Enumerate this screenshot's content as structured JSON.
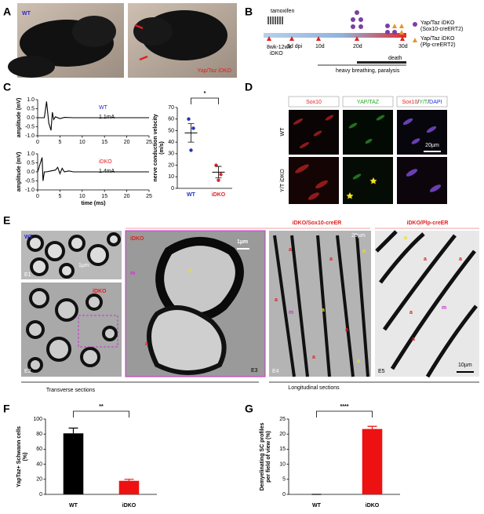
{
  "panel_labels": [
    "A",
    "B",
    "C",
    "D",
    "E",
    "F",
    "G"
  ],
  "panel_a": {
    "wt": "WT",
    "idko": "Yap/Taz iDKO"
  },
  "panel_b": {
    "tamoxifen": "tamoxifen",
    "start": "8wk-12wk",
    "start_sub": "iDKO",
    "days": [
      "5d dpi",
      "10d",
      "20d",
      "30d"
    ],
    "legend": [
      {
        "name": "Yap/Taz iDKO",
        "sub": "(Sox10-creERT2)"
      },
      {
        "name": "Yap/Taz iDKO",
        "sub": "(Plp-creERT2)"
      }
    ],
    "death": "death",
    "symptoms": "heavy breathing, paralysis"
  },
  "panel_d": {
    "columns": [
      [
        "Sox10"
      ],
      [
        "YAP/TAZ"
      ],
      [
        "Sox10",
        "/",
        "Y/T",
        "/",
        "DAPI"
      ]
    ],
    "rows": [
      "WT",
      "Y/T iDKO"
    ],
    "scale": "20µm"
  },
  "panel_e": {
    "header_sox": "iDKO/Sox10-creER",
    "header_plp": "iDKO/Plp-creER",
    "e1": {
      "tag": "E1",
      "label": "WT",
      "scale": "1µm"
    },
    "e2": {
      "tag": "E2",
      "label": "iDKO"
    },
    "e3": {
      "tag": "E3",
      "label": "iDKO",
      "scale": "1µm",
      "marks": [
        "m",
        "a",
        "a"
      ]
    },
    "e4": {
      "tag": "E4",
      "scale": "20µm",
      "marks": [
        "a",
        "a",
        "a",
        "a",
        "m",
        "a",
        "a",
        "a",
        "a"
      ]
    },
    "e5": {
      "tag": "E5",
      "scale": "10µm",
      "marks": [
        "a",
        "a",
        "a",
        "m",
        "a",
        "a"
      ]
    },
    "transverse": "Transverse sections",
    "longitudinal": "Longitudinal sections"
  },
  "chart_data": [
    {
      "type": "line",
      "label": "WT",
      "current": "1.1mA",
      "color": "#000000",
      "x": [
        0,
        1.5,
        2,
        2.5,
        3,
        3.3,
        3.6,
        4,
        5,
        6,
        8,
        12,
        25
      ],
      "values": [
        0,
        0,
        0.9,
        -0.3,
        -0.7,
        0.3,
        -0.1,
        0.05,
        -0.05,
        0.02,
        0,
        0,
        0
      ],
      "xlim": [
        0,
        25
      ],
      "xticks": [
        0,
        5,
        10,
        15,
        20,
        25
      ],
      "ylim": [
        -1,
        1
      ],
      "yticks": [
        {
          "value": -1,
          "label": "-1.0"
        },
        -0.5,
        {
          "value": 0,
          "label": "0.0"
        },
        0.5,
        {
          "value": 1,
          "label": "1.0"
        }
      ],
      "ylabel": [
        "amplitude (mV)"
      ]
    },
    {
      "type": "line",
      "label": "iDKO",
      "current": "1.4mA",
      "color": "#000000",
      "x": [
        0,
        1,
        1.2,
        1.5,
        2,
        3,
        4,
        4.5,
        5,
        5.5,
        6,
        7,
        8,
        25
      ],
      "values": [
        0,
        0.8,
        -0.5,
        0,
        0,
        0.05,
        0.1,
        0.25,
        -0.1,
        0.2,
        0,
        0.05,
        0,
        0
      ],
      "xlim": [
        0,
        25
      ],
      "xticks": [
        0,
        5,
        10,
        15,
        20,
        25
      ],
      "ylim": [
        -1,
        1
      ],
      "yticks": [
        {
          "value": -1,
          "label": "-1.0"
        },
        -0.5,
        {
          "value": 0,
          "label": "0.0"
        },
        0.5,
        {
          "value": 1,
          "label": "1.0"
        }
      ],
      "ylabel": [
        "amplitude (mV)"
      ],
      "xlabel": "time (ms)"
    },
    {
      "type": "dot",
      "categories": [
        "WT",
        "iDKO"
      ],
      "colors": [
        "#2233bb",
        "#e0252e"
      ],
      "points": [
        [
          60,
          52,
          33
        ],
        [
          20,
          12,
          7
        ]
      ],
      "mean": [
        48,
        14
      ],
      "sem": [
        8,
        5
      ],
      "ylim": [
        0,
        70
      ],
      "yticks": [
        0,
        10,
        20,
        30,
        40,
        50,
        60,
        70
      ],
      "ylabel": [
        "nerve conduction velocity",
        "(m/s)"
      ],
      "significance": "*"
    },
    {
      "type": "bar",
      "categories": [
        "WT",
        "iDKO"
      ],
      "colors": [
        "#000000",
        "#ee1111"
      ],
      "values": [
        81,
        18
      ],
      "errors": [
        7,
        2
      ],
      "ylim": [
        0,
        100
      ],
      "yticks": [
        0,
        20,
        40,
        60,
        80,
        100
      ],
      "ylabel": [
        "YapTaz+ Schwann cells",
        "(%)"
      ],
      "significance": "**"
    },
    {
      "type": "bar",
      "categories": [
        "WT",
        "iDKO"
      ],
      "colors": [
        "#000000",
        "#ee1111"
      ],
      "values": [
        0,
        21.7
      ],
      "errors": [
        0,
        0.9
      ],
      "ylim": [
        0,
        25
      ],
      "yticks": [
        0,
        5,
        10,
        15,
        20,
        25
      ],
      "ylabel": [
        "Demyelinating SC profiles",
        "per field of view (%)"
      ],
      "significance": "****"
    }
  ]
}
